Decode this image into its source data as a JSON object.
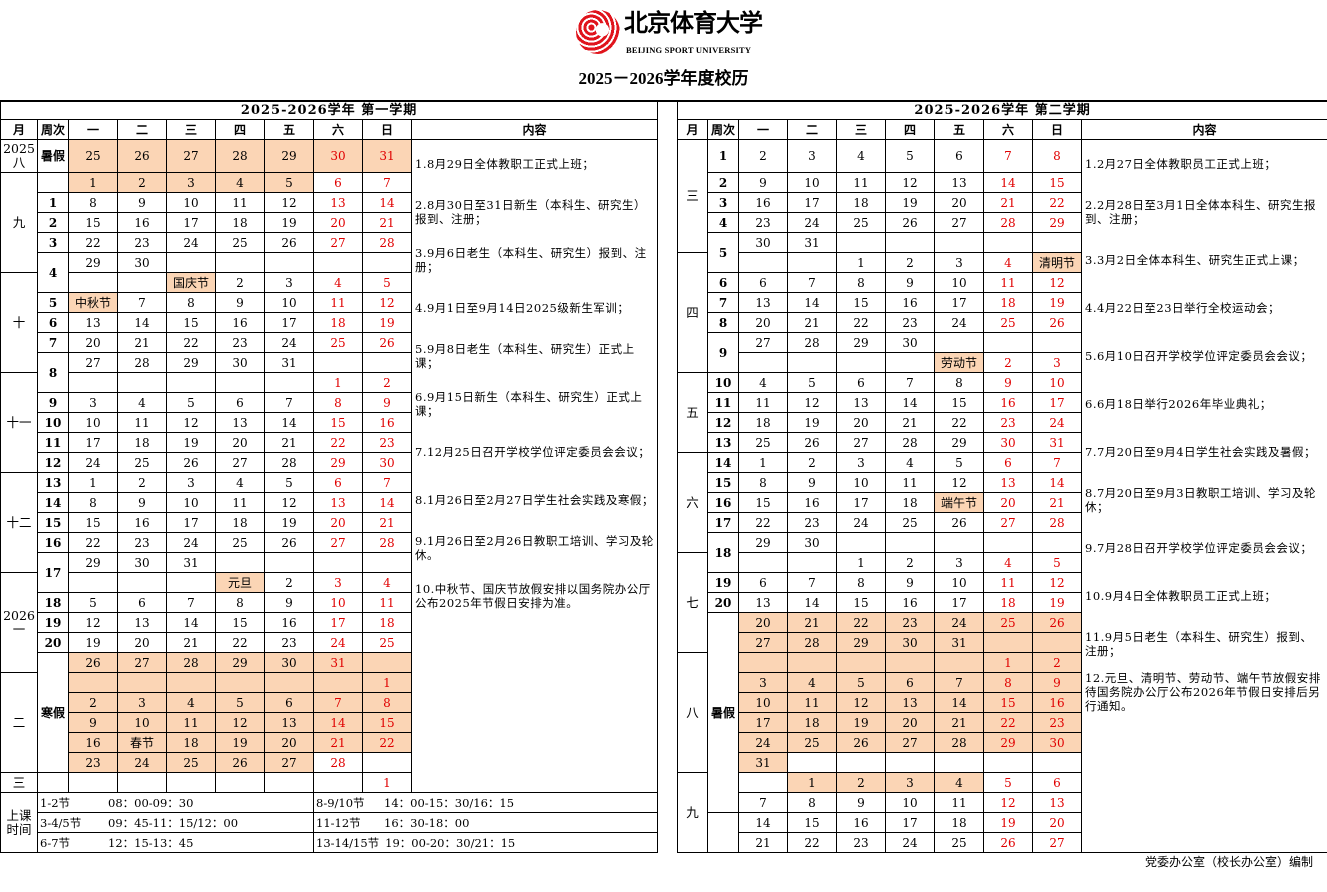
{
  "logo": {
    "cn": "北京体育大学",
    "en": "BEIJING SPORT UNIVERSITY"
  },
  "title": "2025－2026学年度校历",
  "weekday_header": {
    "month": "月",
    "week": "周次",
    "days": [
      "一",
      "二",
      "三",
      "四",
      "五",
      "六",
      "日"
    ],
    "content": "内容"
  },
  "colors": {
    "holiday_fill": "#fbd5b5",
    "weekend_text": "#e00000"
  },
  "semesters": [
    {
      "title": "2025-2026学年  第一学期",
      "months": [
        {
          "label": "2025 八",
          "span": 1
        },
        {
          "label": "九",
          "span": 5
        },
        {
          "label": "十",
          "span": 5
        },
        {
          "label": "十一",
          "span": 5
        },
        {
          "label": "十二",
          "span": 5
        },
        {
          "label": "2026 一",
          "span": 5
        },
        {
          "label": "二",
          "span": 5
        },
        {
          "label": "三",
          "span": 1
        }
      ],
      "weeks": [
        {
          "label": "暑假",
          "span": 1
        },
        {
          "label": "",
          "span": 1
        },
        {
          "label": "1",
          "span": 1
        },
        {
          "label": "2",
          "span": 1
        },
        {
          "label": "3",
          "span": 1
        },
        {
          "label": "4",
          "span": 2
        },
        {
          "label": "5",
          "span": 1
        },
        {
          "label": "6",
          "span": 1
        },
        {
          "label": "7",
          "span": 1
        },
        {
          "label": "8",
          "span": 2
        },
        {
          "label": "9",
          "span": 1
        },
        {
          "label": "10",
          "span": 1
        },
        {
          "label": "11",
          "span": 1
        },
        {
          "label": "12",
          "span": 1
        },
        {
          "label": "13",
          "span": 1
        },
        {
          "label": "14",
          "span": 1
        },
        {
          "label": "15",
          "span": 1
        },
        {
          "label": "16",
          "span": 1
        },
        {
          "label": "17",
          "span": 2
        },
        {
          "label": "18",
          "span": 1
        },
        {
          "label": "19",
          "span": 1
        },
        {
          "label": "20",
          "span": 1
        },
        {
          "label": "寒假",
          "span": 6
        },
        {
          "label": "",
          "span": 1
        }
      ],
      "rows": [
        {
          "d": [
            "25",
            "26",
            "27",
            "28",
            "29",
            "30",
            "31"
          ],
          "h": "1111111"
        },
        {
          "d": [
            "1",
            "2",
            "3",
            "4",
            "5",
            "6",
            "7"
          ],
          "h": "1111100"
        },
        {
          "d": [
            "8",
            "9",
            "10",
            "11",
            "12",
            "13",
            "14"
          ],
          "h": "0000000"
        },
        {
          "d": [
            "15",
            "16",
            "17",
            "18",
            "19",
            "20",
            "21"
          ],
          "h": "0000000"
        },
        {
          "d": [
            "22",
            "23",
            "24",
            "25",
            "26",
            "27",
            "28"
          ],
          "h": "0000000"
        },
        {
          "d": [
            "29",
            "30",
            "",
            "",
            "",
            "",
            ""
          ],
          "h": "0000000"
        },
        {
          "d": [
            "",
            "",
            "国庆节",
            "2",
            "3",
            "4",
            "5"
          ],
          "h": "0010000"
        },
        {
          "d": [
            "中秋节",
            "7",
            "8",
            "9",
            "10",
            "11",
            "12"
          ],
          "h": "1000000"
        },
        {
          "d": [
            "13",
            "14",
            "15",
            "16",
            "17",
            "18",
            "19"
          ],
          "h": "0000000"
        },
        {
          "d": [
            "20",
            "21",
            "22",
            "23",
            "24",
            "25",
            "26"
          ],
          "h": "0000000"
        },
        {
          "d": [
            "27",
            "28",
            "29",
            "30",
            "31",
            "",
            ""
          ],
          "h": "0000000"
        },
        {
          "d": [
            "",
            "",
            "",
            "",
            "",
            "1",
            "2"
          ],
          "h": "0000000"
        },
        {
          "d": [
            "3",
            "4",
            "5",
            "6",
            "7",
            "8",
            "9"
          ],
          "h": "0000000"
        },
        {
          "d": [
            "10",
            "11",
            "12",
            "13",
            "14",
            "15",
            "16"
          ],
          "h": "0000000"
        },
        {
          "d": [
            "17",
            "18",
            "19",
            "20",
            "21",
            "22",
            "23"
          ],
          "h": "0000000"
        },
        {
          "d": [
            "24",
            "25",
            "26",
            "27",
            "28",
            "29",
            "30"
          ],
          "h": "0000000"
        },
        {
          "d": [
            "1",
            "2",
            "3",
            "4",
            "5",
            "6",
            "7"
          ],
          "h": "0000000"
        },
        {
          "d": [
            "8",
            "9",
            "10",
            "11",
            "12",
            "13",
            "14"
          ],
          "h": "0000000"
        },
        {
          "d": [
            "15",
            "16",
            "17",
            "18",
            "19",
            "20",
            "21"
          ],
          "h": "0000000"
        },
        {
          "d": [
            "22",
            "23",
            "24",
            "25",
            "26",
            "27",
            "28"
          ],
          "h": "0000000"
        },
        {
          "d": [
            "29",
            "30",
            "31",
            "",
            "",
            "",
            ""
          ],
          "h": "0000000"
        },
        {
          "d": [
            "",
            "",
            "",
            "元旦",
            "2",
            "3",
            "4"
          ],
          "h": "0001000"
        },
        {
          "d": [
            "5",
            "6",
            "7",
            "8",
            "9",
            "10",
            "11"
          ],
          "h": "0000000"
        },
        {
          "d": [
            "12",
            "13",
            "14",
            "15",
            "16",
            "17",
            "18"
          ],
          "h": "0000000"
        },
        {
          "d": [
            "19",
            "20",
            "21",
            "22",
            "23",
            "24",
            "25"
          ],
          "h": "0000000"
        },
        {
          "d": [
            "26",
            "27",
            "28",
            "29",
            "30",
            "31",
            ""
          ],
          "h": "1111111"
        },
        {
          "d": [
            "",
            "",
            "",
            "",
            "",
            "",
            "1"
          ],
          "h": "1111111"
        },
        {
          "d": [
            "2",
            "3",
            "4",
            "5",
            "6",
            "7",
            "8"
          ],
          "h": "1111111"
        },
        {
          "d": [
            "9",
            "10",
            "11",
            "12",
            "13",
            "14",
            "15"
          ],
          "h": "1111111"
        },
        {
          "d": [
            "16",
            "春节",
            "18",
            "19",
            "20",
            "21",
            "22"
          ],
          "h": "1111111"
        },
        {
          "d": [
            "23",
            "24",
            "25",
            "26",
            "27",
            "28",
            ""
          ],
          "h": "1111100"
        },
        {
          "d": [
            "",
            "",
            "",
            "",
            "",
            "",
            "1"
          ],
          "h": "0000000"
        }
      ],
      "content": [
        "1.8月29日全体教职工正式上班；",
        "2.8月30日至31日新生（本科生、研究生）报到、注册；",
        "3.9月6日老生（本科生、研究生）报到、注册；",
        "4.9月1日至9月14日2025级新生军训；",
        "5.9月8日老生（本科生、研究生）正式上课；",
        "6.9月15日新生（本科生、研究生）正式上课；",
        "7.12月25日召开学校学位评定委员会会议；",
        "8.1月26日至2月27日学生社会实践及寒假；",
        "9.1月26日至2月26日教职工培训、学习及轮休。",
        "10.中秋节、国庆节放假安排以国务院办公厅公布2025年节假日安排为准。"
      ],
      "class_times": {
        "label": "上课时间",
        "rows": [
          [
            {
              "period": "1-2节",
              "time": "08：00-09：30"
            },
            {
              "period": "8-9/10节",
              "time": "14：00-15：30/16：15"
            }
          ],
          [
            {
              "period": "3-4/5节",
              "time": "09：45-11：15/12：00"
            },
            {
              "period": "11-12节",
              "time": "16：30-18：00"
            }
          ],
          [
            {
              "period": "6-7节",
              "time": "12：15-13：45"
            },
            {
              "period": "13-14/15节",
              "time": "19：00-20：30/21：15"
            }
          ]
        ]
      }
    },
    {
      "title": "2025-2026学年  第二学期",
      "months": [
        {
          "label": "三",
          "span": 5
        },
        {
          "label": "四",
          "span": 6
        },
        {
          "label": "五",
          "span": 4
        },
        {
          "label": "六",
          "span": 5
        },
        {
          "label": "七",
          "span": 5
        },
        {
          "label": "八",
          "span": 6
        },
        {
          "label": "九",
          "span": 4
        }
      ],
      "weeks": [
        {
          "label": "1",
          "span": 1
        },
        {
          "label": "2",
          "span": 1
        },
        {
          "label": "3",
          "span": 1
        },
        {
          "label": "4",
          "span": 1
        },
        {
          "label": "5",
          "span": 2
        },
        {
          "label": "6",
          "span": 1
        },
        {
          "label": "7",
          "span": 1
        },
        {
          "label": "8",
          "span": 1
        },
        {
          "label": "9",
          "span": 2
        },
        {
          "label": "10",
          "span": 1
        },
        {
          "label": "11",
          "span": 1
        },
        {
          "label": "12",
          "span": 1
        },
        {
          "label": "13",
          "span": 1
        },
        {
          "label": "14",
          "span": 1
        },
        {
          "label": "15",
          "span": 1
        },
        {
          "label": "16",
          "span": 1
        },
        {
          "label": "17",
          "span": 1
        },
        {
          "label": "18",
          "span": 2
        },
        {
          "label": "19",
          "span": 1
        },
        {
          "label": "20",
          "span": 1
        },
        {
          "label": "暑假",
          "span": 10
        },
        {
          "label": "",
          "span": 2
        }
      ],
      "rows": [
        {
          "d": [
            "2",
            "3",
            "4",
            "5",
            "6",
            "7",
            "8"
          ],
          "h": "0000000"
        },
        {
          "d": [
            "9",
            "10",
            "11",
            "12",
            "13",
            "14",
            "15"
          ],
          "h": "0000000"
        },
        {
          "d": [
            "16",
            "17",
            "18",
            "19",
            "20",
            "21",
            "22"
          ],
          "h": "0000000"
        },
        {
          "d": [
            "23",
            "24",
            "25",
            "26",
            "27",
            "28",
            "29"
          ],
          "h": "0000000"
        },
        {
          "d": [
            "30",
            "31",
            "",
            "",
            "",
            "",
            ""
          ],
          "h": "0000000"
        },
        {
          "d": [
            "",
            "",
            "1",
            "2",
            "3",
            "4",
            "清明节"
          ],
          "h": "0000001"
        },
        {
          "d": [
            "6",
            "7",
            "8",
            "9",
            "10",
            "11",
            "12"
          ],
          "h": "0000000"
        },
        {
          "d": [
            "13",
            "14",
            "15",
            "16",
            "17",
            "18",
            "19"
          ],
          "h": "0000000"
        },
        {
          "d": [
            "20",
            "21",
            "22",
            "23",
            "24",
            "25",
            "26"
          ],
          "h": "0000000"
        },
        {
          "d": [
            "27",
            "28",
            "29",
            "30",
            "",
            "",
            ""
          ],
          "h": "0000000"
        },
        {
          "d": [
            "",
            "",
            "",
            "",
            "劳动节",
            "2",
            "3"
          ],
          "h": "0000100"
        },
        {
          "d": [
            "4",
            "5",
            "6",
            "7",
            "8",
            "9",
            "10"
          ],
          "h": "0000000"
        },
        {
          "d": [
            "11",
            "12",
            "13",
            "14",
            "15",
            "16",
            "17"
          ],
          "h": "0000000"
        },
        {
          "d": [
            "18",
            "19",
            "20",
            "21",
            "22",
            "23",
            "24"
          ],
          "h": "0000000"
        },
        {
          "d": [
            "25",
            "26",
            "27",
            "28",
            "29",
            "30",
            "31"
          ],
          "h": "0000000"
        },
        {
          "d": [
            "1",
            "2",
            "3",
            "4",
            "5",
            "6",
            "7"
          ],
          "h": "0000000"
        },
        {
          "d": [
            "8",
            "9",
            "10",
            "11",
            "12",
            "13",
            "14"
          ],
          "h": "0000000"
        },
        {
          "d": [
            "15",
            "16",
            "17",
            "18",
            "端午节",
            "20",
            "21"
          ],
          "h": "0000100"
        },
        {
          "d": [
            "22",
            "23",
            "24",
            "25",
            "26",
            "27",
            "28"
          ],
          "h": "0000000"
        },
        {
          "d": [
            "29",
            "30",
            "",
            "",
            "",
            "",
            ""
          ],
          "h": "0000000"
        },
        {
          "d": [
            "",
            "",
            "1",
            "2",
            "3",
            "4",
            "5"
          ],
          "h": "0000000"
        },
        {
          "d": [
            "6",
            "7",
            "8",
            "9",
            "10",
            "11",
            "12"
          ],
          "h": "0000000"
        },
        {
          "d": [
            "13",
            "14",
            "15",
            "16",
            "17",
            "18",
            "19"
          ],
          "h": "0000000"
        },
        {
          "d": [
            "20",
            "21",
            "22",
            "23",
            "24",
            "25",
            "26"
          ],
          "h": "1111111"
        },
        {
          "d": [
            "27",
            "28",
            "29",
            "30",
            "31",
            "",
            ""
          ],
          "h": "1111111"
        },
        {
          "d": [
            "",
            "",
            "",
            "",
            "",
            "1",
            "2"
          ],
          "h": "1111111"
        },
        {
          "d": [
            "3",
            "4",
            "5",
            "6",
            "7",
            "8",
            "9"
          ],
          "h": "1111111"
        },
        {
          "d": [
            "10",
            "11",
            "12",
            "13",
            "14",
            "15",
            "16"
          ],
          "h": "1111111"
        },
        {
          "d": [
            "17",
            "18",
            "19",
            "20",
            "21",
            "22",
            "23"
          ],
          "h": "1111111"
        },
        {
          "d": [
            "24",
            "25",
            "26",
            "27",
            "28",
            "29",
            "30"
          ],
          "h": "1111111"
        },
        {
          "d": [
            "31",
            "",
            "",
            "",
            "",
            "",
            ""
          ],
          "h": "1000000"
        },
        {
          "d": [
            "",
            "1",
            "2",
            "3",
            "4",
            "5",
            "6"
          ],
          "h": "0111100"
        },
        {
          "d": [
            "7",
            "8",
            "9",
            "10",
            "11",
            "12",
            "13"
          ],
          "h": "0000000"
        },
        {
          "d": [
            "14",
            "15",
            "16",
            "17",
            "18",
            "19",
            "20"
          ],
          "h": "0000000"
        },
        {
          "d": [
            "21",
            "22",
            "23",
            "24",
            "25",
            "26",
            "27"
          ],
          "h": "0000000"
        }
      ],
      "content": [
        "1.2月27日全体教职员工正式上班；",
        "2.2月28日至3月1日全体本科生、研究生报到、注册；",
        "3.3月2日全体本科生、研究生正式上课；",
        "4.4月22日至23日举行全校运动会；",
        "5.6月10日召开学校学位评定委员会会议；",
        "6.6月18日举行2026年毕业典礼；",
        "7.7月20日至9月4日学生社会实践及暑假；",
        "8.7月20日至9月3日教职工培训、学习及轮休；",
        "9.7月28日召开学校学位评定委员会会议；",
        "10.9月4日全体教职员工正式上班；",
        "11.9月5日老生（本科生、研究生）报到、注册；",
        "12.元旦、清明节、劳动节、端午节放假安排待国务院办公厅公布2026年节假日安排后另行通知。"
      ]
    }
  ],
  "footer_note": "党委办公室（校长办公室）编制"
}
